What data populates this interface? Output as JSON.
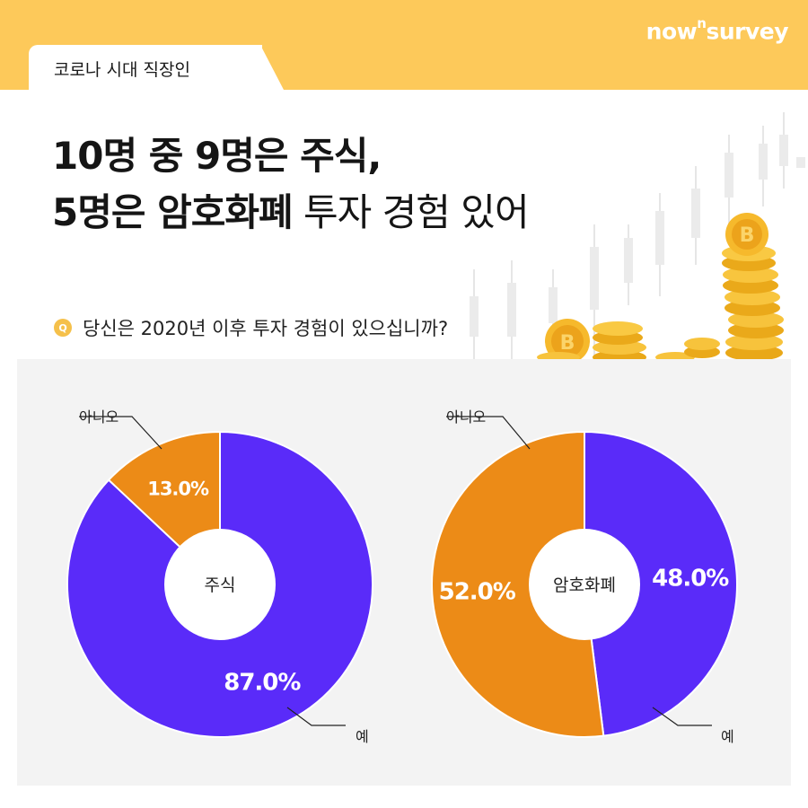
{
  "brand": {
    "name": "now",
    "sup": "n",
    "suffix": "survey"
  },
  "tab_label": "코로나 시대 직장인",
  "headline": {
    "line1": "10명 중 9명은 주식,",
    "line2_bold": "5명은 암호화폐",
    "line2_light": " 투자 경험 있어"
  },
  "question": {
    "badge": "Q",
    "text": "당신은 2020년 이후 투자 경험이 있으십니까?"
  },
  "colors": {
    "yes": "#5a2bf9",
    "no": "#ec8b17",
    "header_bg": "#fdc95a",
    "panel_bg": "#f3f3f3"
  },
  "chart_data": [
    {
      "type": "pie",
      "center_label": "주식",
      "categories": [
        "예",
        "아니오"
      ],
      "values": [
        87.0,
        13.0
      ],
      "value_labels": [
        "87.0%",
        "13.0%"
      ]
    },
    {
      "type": "pie",
      "center_label": "암호화폐",
      "categories": [
        "예",
        "아니오"
      ],
      "values": [
        48.0,
        52.0
      ],
      "value_labels": [
        "48.0%",
        "52.0%"
      ]
    }
  ]
}
